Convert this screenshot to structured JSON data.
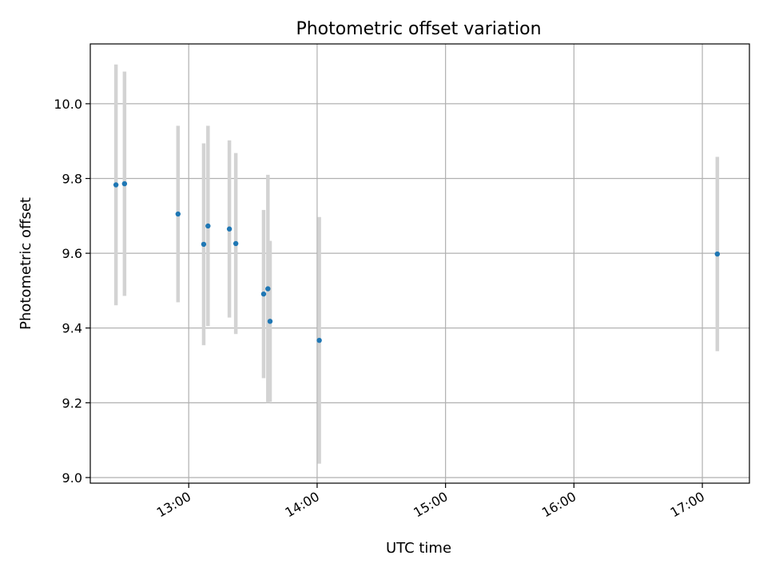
{
  "chart_data": {
    "type": "scatter",
    "title": "Photometric offset variation",
    "xlabel": "UTC time",
    "ylabel": "Photometric offset",
    "x_ticks": [
      "13:00",
      "14:00",
      "15:00",
      "16:00",
      "17:00"
    ],
    "y_ticks": [
      "9.0",
      "9.2",
      "9.4",
      "9.6",
      "9.8",
      "10.0"
    ],
    "xlim": [
      "12:14",
      "17:22"
    ],
    "ylim": [
      8.985,
      10.16
    ],
    "grid": true,
    "colors": {
      "point": "#1f77b4",
      "errorbar": "#d3d3d3"
    },
    "points": [
      {
        "x": "12:26",
        "y": 9.783,
        "err": 0.322
      },
      {
        "x": "12:30",
        "y": 9.786,
        "err": 0.3
      },
      {
        "x": "12:55",
        "y": 9.705,
        "err": 0.236
      },
      {
        "x": "13:07",
        "y": 9.624,
        "err": 0.27
      },
      {
        "x": "13:09",
        "y": 9.673,
        "err": 0.268
      },
      {
        "x": "13:19",
        "y": 9.665,
        "err": 0.237
      },
      {
        "x": "13:22",
        "y": 9.626,
        "err": 0.242
      },
      {
        "x": "13:35",
        "y": 9.491,
        "err": 0.225
      },
      {
        "x": "13:37",
        "y": 9.505,
        "err": 0.305
      },
      {
        "x": "13:38",
        "y": 9.418,
        "err": 0.215
      },
      {
        "x": "14:01",
        "y": 9.367,
        "err": 0.33
      },
      {
        "x": "17:07",
        "y": 9.598,
        "err": 0.26
      }
    ]
  }
}
